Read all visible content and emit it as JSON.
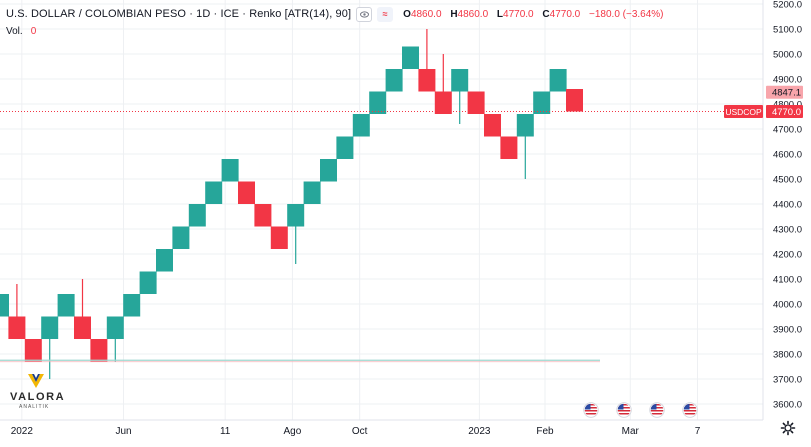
{
  "header": {
    "title": "U.S. DOLLAR / COLOMBIAN PESO · 1D · ICE · Renko [ATR(14), 90]",
    "open_key": "O",
    "open": "4860.0",
    "high_key": "H",
    "high": "4860.0",
    "low_key": "L",
    "low": "4770.0",
    "close_key": "C",
    "close": "4770.0",
    "change": "−180.0 (−3.64%)",
    "volume_label": "Vol.",
    "volume_value": "0"
  },
  "logo": {
    "name": "VALORA",
    "tagline": "ANALITIK"
  },
  "colors": {
    "up": "#26a69a",
    "down": "#f23645",
    "grid": "#eef0f3",
    "axis_text": "#131722"
  },
  "icons": [
    "eye-icon",
    "indicator-icon",
    "event-flag-icon",
    "settings-gear-icon"
  ],
  "chart_data": {
    "type": "renko",
    "symbol": "USDCOP",
    "box_size": 90,
    "y_axis": {
      "min": 3580,
      "max": 5200,
      "ticks": [
        3600,
        3700,
        3800,
        3900,
        4000,
        4100,
        4200,
        4300,
        4400,
        4500,
        4600,
        4700,
        4800,
        4900,
        5000,
        5100,
        5200
      ],
      "tick_labels": [
        "3600.0",
        "3700.0",
        "3800.0",
        "3900.0",
        "4000.0",
        "4100.0",
        "4200.0",
        "4300.0",
        "4400.0",
        "4500.0",
        "4600.0",
        "4700.0",
        "4800.0",
        "4900.0",
        "5000.0",
        "5100.0",
        "5200.0"
      ]
    },
    "x_axis": {
      "labels": [
        {
          "text": "2022",
          "col": 1.3
        },
        {
          "text": "Jun",
          "col": 7.5
        },
        {
          "text": "11",
          "col": 13.7
        },
        {
          "text": "Ago",
          "col": 17.8
        },
        {
          "text": "Oct",
          "col": 21.9
        },
        {
          "text": "2023",
          "col": 29.2
        },
        {
          "text": "Feb",
          "col": 33.2
        },
        {
          "text": "Mar",
          "col": 38.4
        },
        {
          "text": "7",
          "col": 42.5
        }
      ]
    },
    "bricks": [
      {
        "dir": "up",
        "low": 3950,
        "high": 4040
      },
      {
        "dir": "down",
        "low": 3860,
        "high": 3950,
        "wick_high": 4080
      },
      {
        "dir": "down",
        "low": 3770,
        "high": 3860
      },
      {
        "dir": "up",
        "low": 3860,
        "high": 3950,
        "wick_low": 3700
      },
      {
        "dir": "up",
        "low": 3950,
        "high": 4040
      },
      {
        "dir": "down",
        "low": 3860,
        "high": 3950,
        "wick_high": 4100
      },
      {
        "dir": "down",
        "low": 3770,
        "high": 3860
      },
      {
        "dir": "up",
        "low": 3860,
        "high": 3950,
        "wick_low": 3770
      },
      {
        "dir": "up",
        "low": 3950,
        "high": 4040
      },
      {
        "dir": "up",
        "low": 4040,
        "high": 4130
      },
      {
        "dir": "up",
        "low": 4130,
        "high": 4220
      },
      {
        "dir": "up",
        "low": 4220,
        "high": 4310
      },
      {
        "dir": "up",
        "low": 4310,
        "high": 4400
      },
      {
        "dir": "up",
        "low": 4400,
        "high": 4490
      },
      {
        "dir": "up",
        "low": 4490,
        "high": 4580
      },
      {
        "dir": "down",
        "low": 4400,
        "high": 4490
      },
      {
        "dir": "down",
        "low": 4310,
        "high": 4400
      },
      {
        "dir": "down",
        "low": 4220,
        "high": 4310
      },
      {
        "dir": "up",
        "low": 4310,
        "high": 4400,
        "wick_low": 4160
      },
      {
        "dir": "up",
        "low": 4400,
        "high": 4490
      },
      {
        "dir": "up",
        "low": 4490,
        "high": 4580
      },
      {
        "dir": "up",
        "low": 4580,
        "high": 4670
      },
      {
        "dir": "up",
        "low": 4670,
        "high": 4760
      },
      {
        "dir": "up",
        "low": 4760,
        "high": 4850
      },
      {
        "dir": "up",
        "low": 4850,
        "high": 4940
      },
      {
        "dir": "up",
        "low": 4940,
        "high": 5030
      },
      {
        "dir": "down",
        "low": 4850,
        "high": 4940,
        "wick_high": 5100
      },
      {
        "dir": "down",
        "low": 4760,
        "high": 4850,
        "wick_high": 5000
      },
      {
        "dir": "up",
        "low": 4850,
        "high": 4940,
        "wick_low": 4720
      },
      {
        "dir": "down",
        "low": 4760,
        "high": 4850
      },
      {
        "dir": "down",
        "low": 4670,
        "high": 4760
      },
      {
        "dir": "down",
        "low": 4580,
        "high": 4670
      },
      {
        "dir": "up",
        "low": 4670,
        "high": 4760,
        "wick_low": 4500
      },
      {
        "dir": "up",
        "low": 4760,
        "high": 4850
      },
      {
        "dir": "up",
        "low": 4850,
        "high": 4940
      },
      {
        "dir": "down",
        "low": 4770,
        "high": 4860
      }
    ],
    "price_labels": [
      {
        "text": "4847.1",
        "value": 4847.1,
        "style": "pink"
      },
      {
        "text": "4770.0",
        "value": 4770.0,
        "style": "red",
        "symbol": "USDCOP"
      }
    ],
    "current_price_line": 4770.0,
    "volume_line": 3775,
    "event_flags": 4
  }
}
